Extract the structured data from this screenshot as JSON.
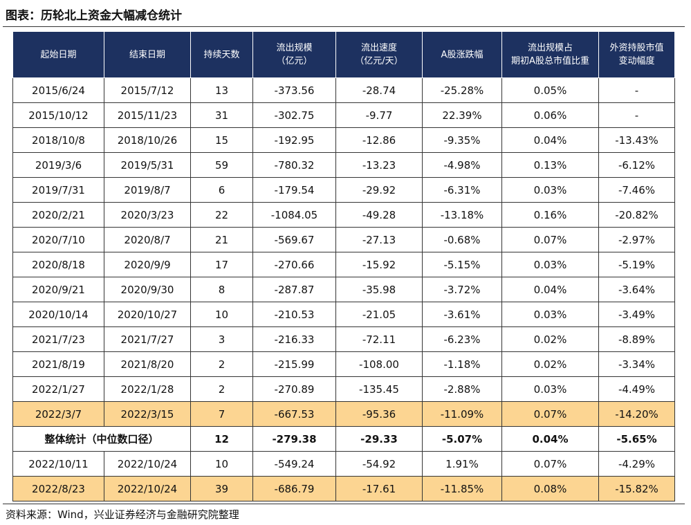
{
  "title": "图表：历轮北上资金大幅减仓统计",
  "table": {
    "header": [
      "起始日期",
      "结束日期",
      "持续天数",
      "流出规模\n（亿元）",
      "流出速度\n（亿元/天）",
      "A股涨跌幅",
      "流出规模占\n期初A股总市值比重",
      "外资持股市值\n变动幅度"
    ],
    "rows": [
      {
        "cells": [
          "2015/6/24",
          "2015/7/12",
          "13",
          "-373.56",
          "-28.74",
          "-25.28%",
          "0.05%",
          "-"
        ]
      },
      {
        "cells": [
          "2015/10/12",
          "2015/11/23",
          "31",
          "-302.75",
          "-9.77",
          "22.39%",
          "0.06%",
          "-"
        ]
      },
      {
        "cells": [
          "2018/10/8",
          "2018/10/26",
          "15",
          "-192.95",
          "-12.86",
          "-9.35%",
          "0.04%",
          "-13.43%"
        ]
      },
      {
        "cells": [
          "2019/3/6",
          "2019/5/31",
          "59",
          "-780.32",
          "-13.23",
          "-4.98%",
          "0.13%",
          "-6.12%"
        ]
      },
      {
        "cells": [
          "2019/7/31",
          "2019/8/7",
          "6",
          "-179.54",
          "-29.92",
          "-6.31%",
          "0.03%",
          "-7.46%"
        ]
      },
      {
        "cells": [
          "2020/2/21",
          "2020/3/23",
          "22",
          "-1084.05",
          "-49.28",
          "-13.18%",
          "0.16%",
          "-20.82%"
        ]
      },
      {
        "cells": [
          "2020/7/10",
          "2020/8/7",
          "21",
          "-569.67",
          "-27.13",
          "-0.68%",
          "0.07%",
          "-2.97%"
        ]
      },
      {
        "cells": [
          "2020/8/18",
          "2020/9/9",
          "17",
          "-270.66",
          "-15.92",
          "-5.15%",
          "0.03%",
          "-5.19%"
        ]
      },
      {
        "cells": [
          "2020/9/21",
          "2020/9/30",
          "8",
          "-287.87",
          "-35.98",
          "-3.72%",
          "0.04%",
          "-3.64%"
        ]
      },
      {
        "cells": [
          "2020/10/14",
          "2020/10/27",
          "10",
          "-210.53",
          "-21.05",
          "-3.61%",
          "0.03%",
          "-3.49%"
        ]
      },
      {
        "cells": [
          "2021/7/23",
          "2021/7/27",
          "3",
          "-216.33",
          "-72.11",
          "-6.23%",
          "0.02%",
          "-8.89%"
        ]
      },
      {
        "cells": [
          "2021/8/19",
          "2021/8/20",
          "2",
          "-215.99",
          "-108.00",
          "-1.18%",
          "0.02%",
          "-3.34%"
        ]
      },
      {
        "cells": [
          "2022/1/27",
          "2022/1/28",
          "2",
          "-270.89",
          "-135.45",
          "-2.88%",
          "0.03%",
          "-4.49%"
        ]
      },
      {
        "cells": [
          "2022/3/7",
          "2022/3/15",
          "7",
          "-667.53",
          "-95.36",
          "-11.09%",
          "0.07%",
          "-14.20%"
        ],
        "fill": "#fcd592"
      },
      {
        "cells": [
          "整体统计（中位数口径）",
          "12",
          "-279.38",
          "-29.33",
          "-5.07%",
          "0.04%",
          "-5.65%"
        ],
        "font_weight": "bold"
      },
      {
        "cells": [
          "2022/10/11",
          "2022/10/24",
          "10",
          "-549.24",
          "-54.92",
          "1.91%",
          "0.07%",
          "-4.29%"
        ]
      },
      {
        "cells": [
          "2022/8/23",
          "2022/10/24",
          "39",
          "-686.79",
          "-17.61",
          "-11.85%",
          "0.08%",
          "-15.82%"
        ],
        "fill": "#fcd592"
      }
    ]
  },
  "source": "资料来源：Wind，兴业证券经济与金融研究院整理"
}
